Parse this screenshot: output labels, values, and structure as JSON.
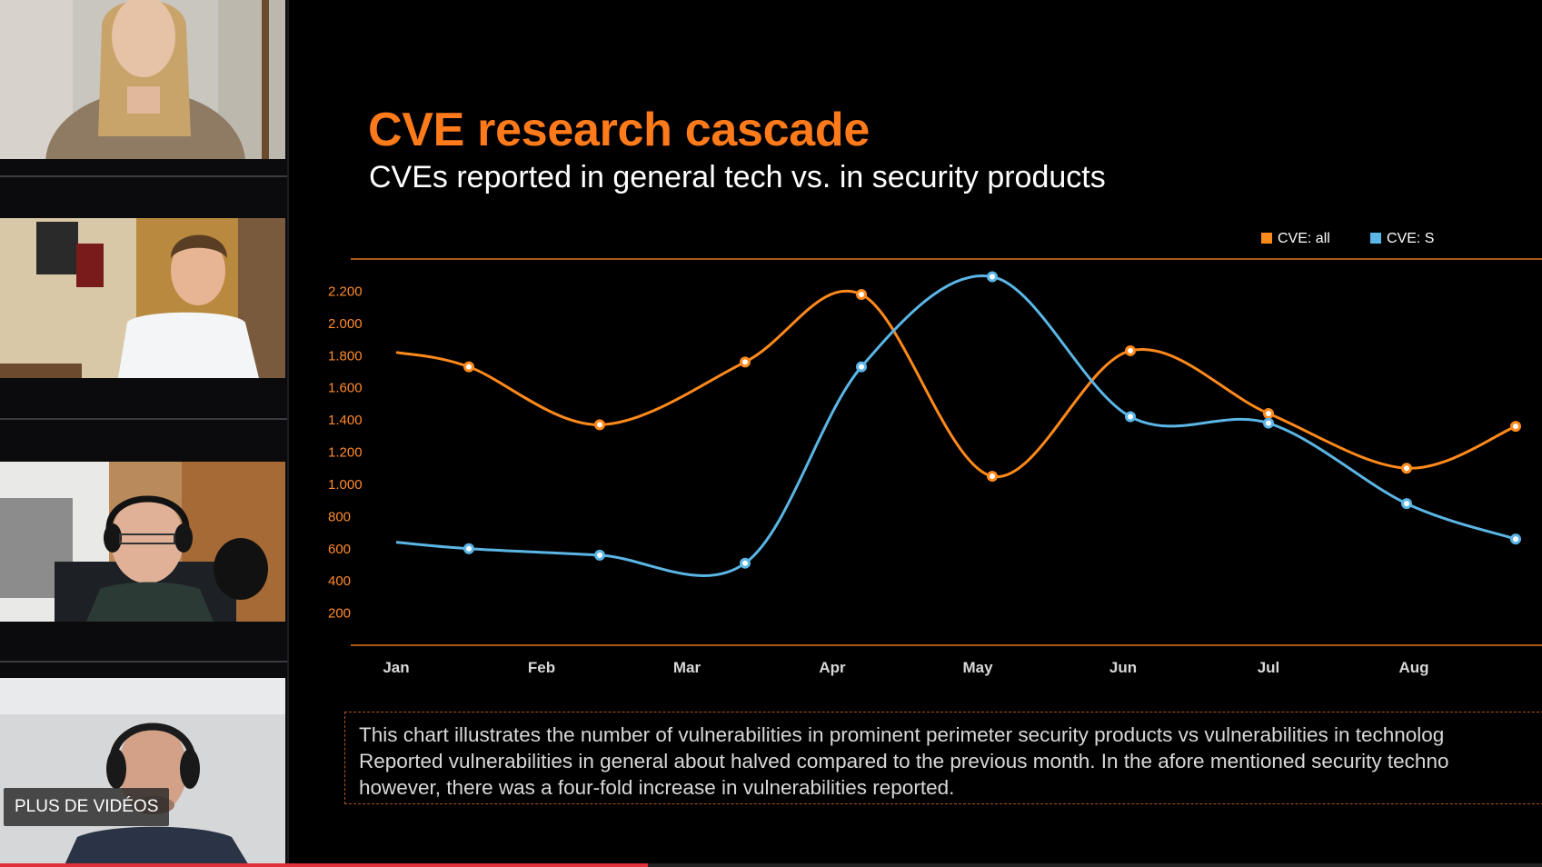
{
  "sidebar": {
    "more_videos_label": "PLUS DE VIDÉOS",
    "participants": [
      {
        "id": "participant-1"
      },
      {
        "id": "participant-2"
      },
      {
        "id": "participant-3"
      },
      {
        "id": "participant-4"
      }
    ]
  },
  "slide": {
    "title": "CVE research cascade",
    "subtitle": "CVEs reported in general tech vs. in security products",
    "caption_lines": [
      "This chart illustrates the number of vulnerabilities in prominent perimeter security products vs vulnerabilities in technolog",
      "Reported vulnerabilities in general about halved compared to the previous month. In the afore mentioned security techno",
      "however, there was a four-fold increase in vulnerabilities reported."
    ]
  },
  "chart_data": {
    "type": "line",
    "categories": [
      "Jan",
      "Feb",
      "Mar",
      "Apr",
      "May",
      "Jun",
      "Jul",
      "Aug"
    ],
    "y_ticks": [
      "200",
      "400",
      "600",
      "800",
      "1.000",
      "1.200",
      "1.400",
      "1.600",
      "1.800",
      "2.000",
      "2.200"
    ],
    "ylim": [
      0,
      2400
    ],
    "series": [
      {
        "name": "CVE: all",
        "color": "#ff8a1c",
        "points": [
          [
            0.0,
            1820
          ],
          [
            0.5,
            1730
          ],
          [
            1.4,
            1370
          ],
          [
            2.4,
            1760
          ],
          [
            3.2,
            2180
          ],
          [
            4.1,
            1050
          ],
          [
            5.05,
            1830
          ],
          [
            6.0,
            1440
          ],
          [
            6.95,
            1100
          ],
          [
            7.7,
            1360
          ]
        ]
      },
      {
        "name": "CVE: S",
        "color": "#5bb6e6",
        "points": [
          [
            0.0,
            640
          ],
          [
            0.5,
            600
          ],
          [
            1.4,
            560
          ],
          [
            2.4,
            510
          ],
          [
            3.2,
            1730
          ],
          [
            4.1,
            2290
          ],
          [
            5.05,
            1420
          ],
          [
            6.0,
            1380
          ],
          [
            6.95,
            880
          ],
          [
            7.7,
            660
          ]
        ]
      }
    ],
    "legend_position": "top-right"
  },
  "progress": 0.42
}
